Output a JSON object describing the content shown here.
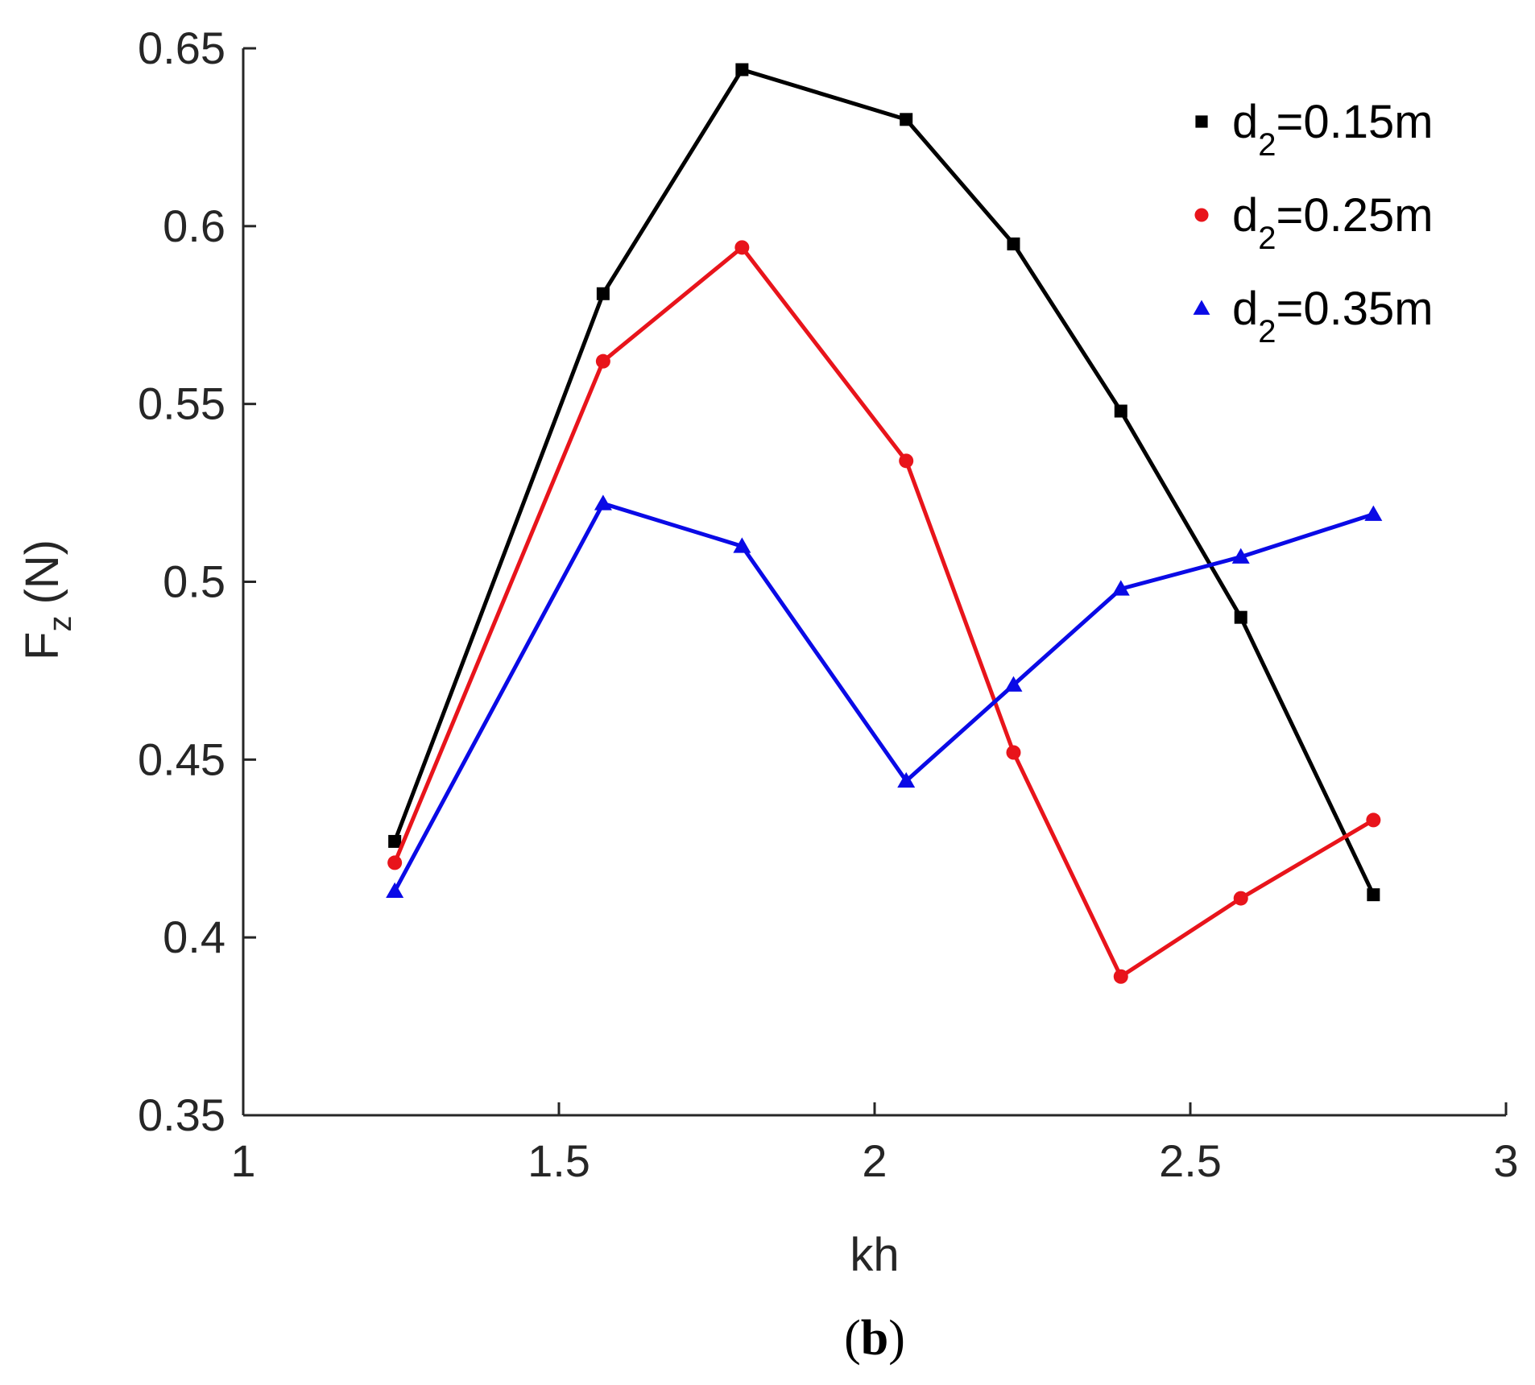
{
  "chart_data": {
    "type": "line",
    "title": "",
    "xlabel": "kh",
    "ylabel": {
      "main": "F",
      "sub": "z",
      "unit": "(N)"
    },
    "xlim": [
      1,
      3
    ],
    "ylim": [
      0.35,
      0.65
    ],
    "xticks": [
      1,
      1.5,
      2,
      2.5,
      3
    ],
    "xtick_labels": [
      "1",
      "1.5",
      "2",
      "2.5",
      "3"
    ],
    "yticks": [
      0.35,
      0.4,
      0.45,
      0.5,
      0.55,
      0.6,
      0.65
    ],
    "ytick_labels": [
      "0.35",
      "0.4",
      "0.45",
      "0.5",
      "0.55",
      "0.6",
      "0.65"
    ],
    "grid": false,
    "legend_position": "top-right",
    "x": [
      1.24,
      1.57,
      1.79,
      2.05,
      2.22,
      2.39,
      2.58,
      2.79
    ],
    "series": [
      {
        "name": "d2=0.15m",
        "label_main": "d",
        "label_sub": "2",
        "label_rest": "=0.15m",
        "color": "#000000",
        "marker": "square",
        "values": [
          0.427,
          0.581,
          0.644,
          0.63,
          0.595,
          0.548,
          0.49,
          0.412
        ]
      },
      {
        "name": "d2=0.25m",
        "label_main": "d",
        "label_sub": "2",
        "label_rest": "=0.25m",
        "color": "#e8141b",
        "marker": "circle",
        "values": [
          0.421,
          0.562,
          0.594,
          0.534,
          0.452,
          0.389,
          0.411,
          0.433
        ]
      },
      {
        "name": "d2=0.35m",
        "label_main": "d",
        "label_sub": "2",
        "label_rest": "=0.35m",
        "color": "#0a0ae6",
        "marker": "triangle",
        "values": [
          0.413,
          0.522,
          0.51,
          0.444,
          0.471,
          0.498,
          0.507,
          0.519
        ]
      }
    ]
  },
  "caption": {
    "open": "(",
    "letter": "b",
    "close": ")"
  }
}
